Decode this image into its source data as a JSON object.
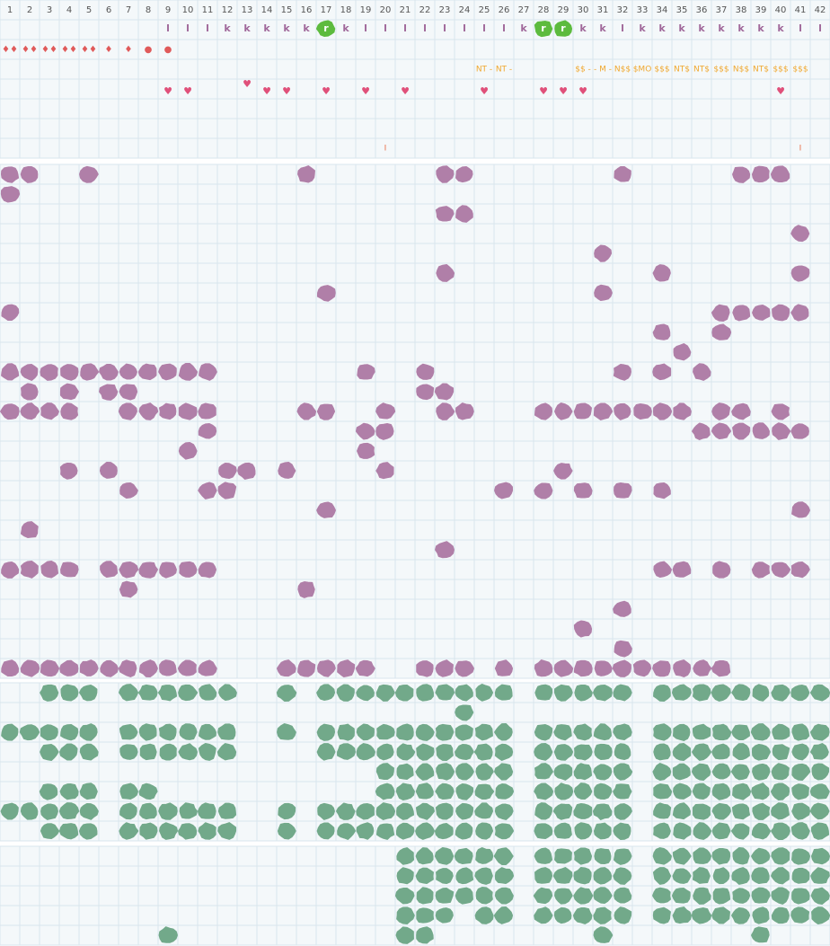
{
  "header": {
    "columns": [
      "1",
      "2",
      "3",
      "4",
      "5",
      "6",
      "7",
      "8",
      "9",
      "10",
      "11",
      "12",
      "13",
      "14",
      "15",
      "16",
      "17",
      "18",
      "19",
      "20",
      "21",
      "22",
      "23",
      "24",
      "25",
      "26",
      "27",
      "28",
      "29",
      "30",
      "31",
      "32",
      "33",
      "34",
      "35",
      "36",
      "37",
      "38",
      "39",
      "40",
      "41",
      "42"
    ]
  },
  "markers": {
    "letters": {
      "9": "l",
      "10": "l",
      "11": "l",
      "12": "k",
      "13": "k",
      "14": "k",
      "15": "k",
      "16": "k",
      "17": "r",
      "18": "k",
      "19": "l",
      "20": "l",
      "21": "l",
      "22": "l",
      "23": "l",
      "24": "l",
      "25": "l",
      "26": "l",
      "27": "k",
      "28": "r",
      "29": "r",
      "30": "k",
      "31": "k",
      "32": "l",
      "33": "k",
      "34": "k",
      "35": "k",
      "36": "k",
      "37": "k",
      "38": "k",
      "39": "k",
      "40": "k",
      "41": "l",
      "42": "l"
    },
    "symbols": {
      "1": "♦♦",
      "2": "♦♦",
      "3": "♦♦",
      "4": "♦♦",
      "5": "♦♦",
      "6": "♦",
      "7": "♦",
      "8": "●",
      "9": "●"
    },
    "codes": {
      "25": "NT -",
      "26": "NT -",
      "30": "$$ -",
      "31": "- M -",
      "32": "N$$",
      "33": "$MO",
      "34": "$$$",
      "35": "NT$",
      "36": "NT$",
      "37": "$$$",
      "38": "N$$",
      "39": "NT$",
      "40": "$$$",
      "41": "$$$"
    },
    "hearts": {
      "9": "♥",
      "10": "♥",
      "13": "♥",
      "14": "♥",
      "15": "♥",
      "17": "♥",
      "19": "♥",
      "21": "♥",
      "25": "♥",
      "28": "♥",
      "29": "♥",
      "30": "♥",
      "40": "♥"
    },
    "ticks": {
      "20": "I",
      "41": "I"
    }
  }
}
